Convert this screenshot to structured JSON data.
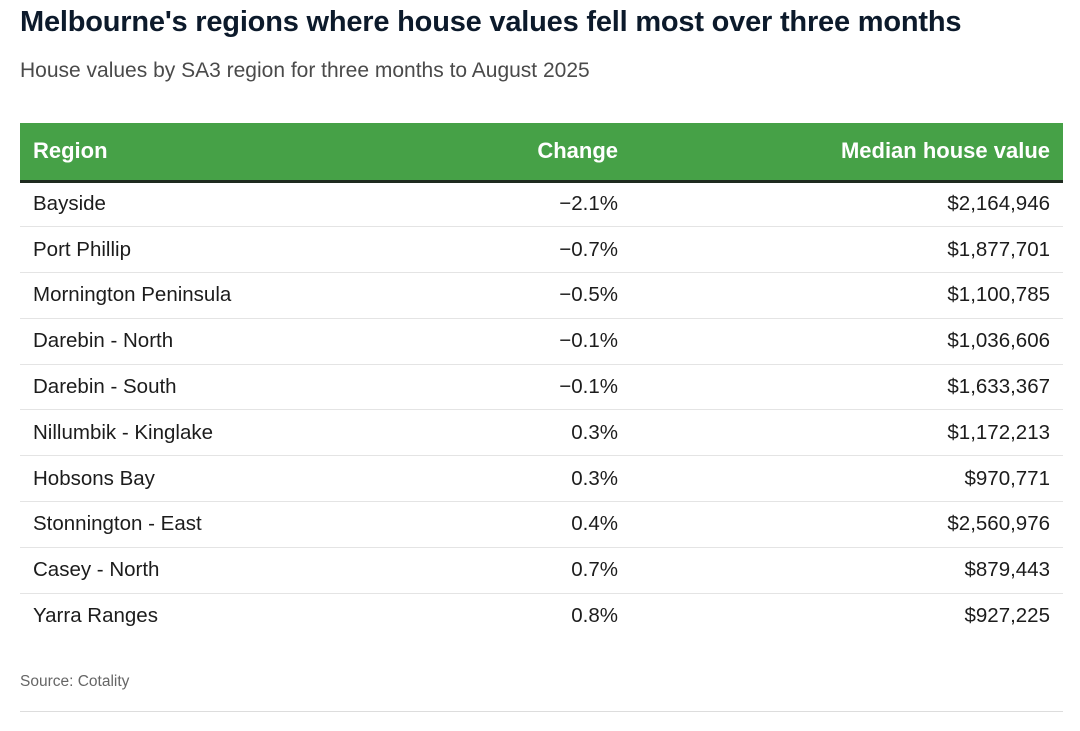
{
  "title": "Melbourne's regions where house values fell most over three months",
  "subtitle": "House values by SA3 region for three months to August 2025",
  "table": {
    "headers": {
      "region": "Region",
      "change": "Change",
      "value": "Median house value"
    },
    "rows": [
      {
        "region": "Bayside",
        "change": "−2.1%",
        "value": "$2,164,946"
      },
      {
        "region": "Port Phillip",
        "change": "−0.7%",
        "value": "$1,877,701"
      },
      {
        "region": "Mornington Peninsula",
        "change": "−0.5%",
        "value": "$1,100,785"
      },
      {
        "region": "Darebin - North",
        "change": "−0.1%",
        "value": "$1,036,606"
      },
      {
        "region": "Darebin - South",
        "change": "−0.1%",
        "value": "$1,633,367"
      },
      {
        "region": "Nillumbik - Kinglake",
        "change": "0.3%",
        "value": "$1,172,213"
      },
      {
        "region": "Hobsons Bay",
        "change": "0.3%",
        "value": "$970,771"
      },
      {
        "region": "Stonnington - East",
        "change": "0.4%",
        "value": "$2,560,976"
      },
      {
        "region": "Casey - North",
        "change": "0.7%",
        "value": "$879,443"
      },
      {
        "region": "Yarra Ranges",
        "change": "0.8%",
        "value": "$927,225"
      }
    ]
  },
  "source": "Source: Cotality",
  "colors": {
    "header_background": "#46a147",
    "header_text": "#ffffff",
    "title_text": "#0c1a2b"
  }
}
